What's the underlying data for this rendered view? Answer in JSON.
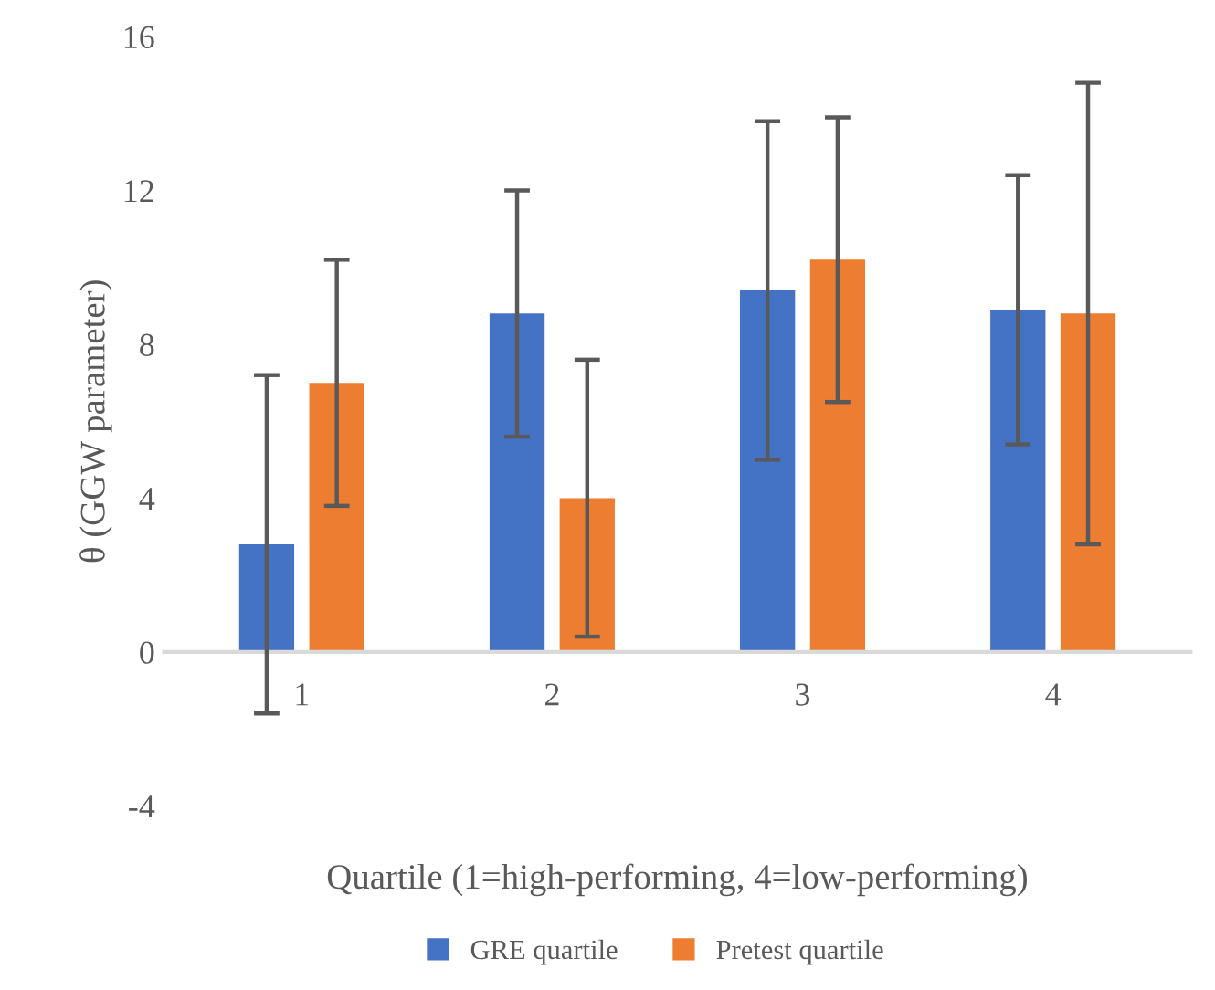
{
  "chart_data": {
    "type": "bar",
    "xlabel": "Quartile (1=high-performing, 4=low-performing)",
    "ylabel": "θ (GGW parameter)",
    "categories": [
      "1",
      "2",
      "3",
      "4"
    ],
    "series": [
      {
        "name": "GRE quartile",
        "color": "#4472c4",
        "values": [
          2.8,
          8.8,
          9.4,
          8.9
        ],
        "errors": [
          4.4,
          3.2,
          4.4,
          3.5
        ]
      },
      {
        "name": "Pretest quartile",
        "color": "#ed7d31",
        "values": [
          7.0,
          4.0,
          10.2,
          8.8
        ],
        "errors": [
          3.2,
          3.6,
          3.7,
          6.0
        ]
      }
    ],
    "ylim": [
      -4,
      16
    ],
    "yticks": [
      -4,
      0,
      4,
      8,
      12,
      16
    ],
    "grid": false,
    "legend": "bottom"
  }
}
